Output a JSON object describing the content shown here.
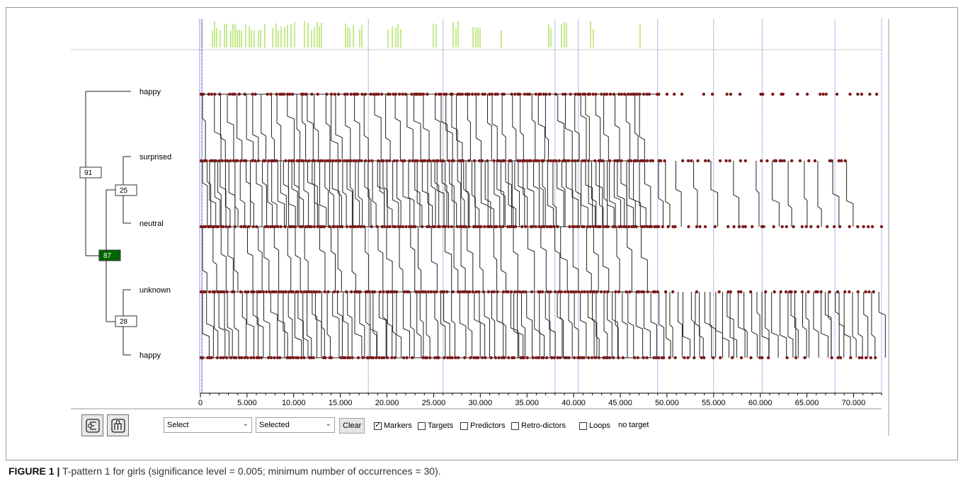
{
  "colors": {
    "event_dot": "#7a1a1a",
    "line": "#222222",
    "green_line": "#8bd61a",
    "blue_marker": "#6f6fe0",
    "selected_node": "#006400"
  },
  "tree": {
    "leaves": [
      "happy",
      "surprised",
      "neutral",
      "unknown",
      "happy"
    ],
    "nodes": [
      {
        "id": "91",
        "selected": false
      },
      {
        "id": "25",
        "selected": false
      },
      {
        "id": "87",
        "selected": true
      },
      {
        "id": "28",
        "selected": false
      }
    ]
  },
  "chart_data": {
    "type": "scatter",
    "xlim": [
      0,
      73000
    ],
    "x_ticks": [
      "0",
      "5.000",
      "10.000",
      "15.000",
      "20.000",
      "25.000",
      "30.000",
      "35.000",
      "40.000",
      "45.000",
      "50.000",
      "55.000",
      "60.000",
      "65.000",
      "70.000"
    ],
    "rows": [
      "happy",
      "surprised",
      "neutral",
      "unknown",
      "happy"
    ],
    "blue_markers_x": [
      200,
      18000,
      26000,
      38000,
      40500,
      49000,
      55000,
      60200,
      68000,
      73000
    ]
  },
  "toolbar": {
    "select1": "Select",
    "select2": "Selected",
    "clear": "Clear",
    "checkboxes": [
      {
        "label": "Markers",
        "checked": true
      },
      {
        "label": "Targets",
        "checked": false
      },
      {
        "label": "Predictors",
        "checked": false
      },
      {
        "label": "Retro-dictors",
        "checked": false
      },
      {
        "label": "Loops",
        "checked": false
      }
    ],
    "status": "no target"
  },
  "caption": {
    "label": "FIGURE 1 |",
    "text": " T-pattern 1 for girls (significance level = 0.005; minimum number of occurrences = 30)."
  }
}
